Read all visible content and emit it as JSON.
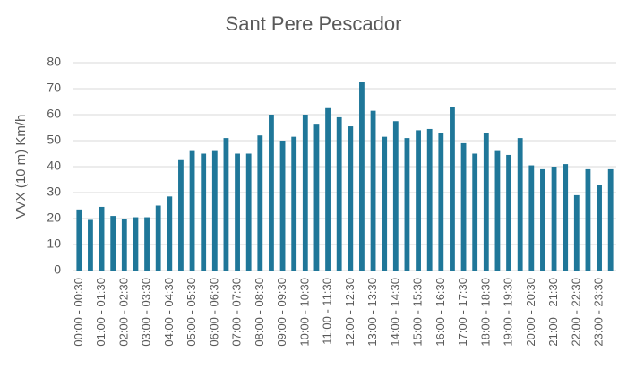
{
  "chart_data": {
    "type": "bar",
    "title": "Sant Pere Pescador",
    "y_label": "VVX (10 m)  Km/h",
    "categories": [
      "00:00 - 00:30",
      null,
      "01:00 - 01:30",
      null,
      "02:00 - 02:30",
      null,
      "03:00 - 03:30",
      null,
      "04:00 - 04:30",
      null,
      "05:00 - 05:30",
      null,
      "06:00 - 06:30",
      null,
      "07:00 - 07:30",
      null,
      "08:00 - 08:30",
      null,
      "09:00 - 09:30",
      null,
      "10:00 - 10:30",
      null,
      "11:00 - 11:30",
      null,
      "12:00 - 12:30",
      null,
      "13:00 - 13:30",
      null,
      "14:00 - 14:30",
      null,
      "15:00 - 15:30",
      null,
      "16:00 - 16:30",
      null,
      "17:00 - 17:30",
      null,
      "18:00 - 18:30",
      null,
      "19:00 - 19:30",
      null,
      "20:00 - 20:30",
      null,
      "21:00 - 21:30",
      null,
      "22:00 - 22:30",
      null,
      "23:00 - 23:30",
      null
    ],
    "values": [
      23.5,
      19.5,
      24.5,
      21,
      20,
      20.5,
      20.5,
      25,
      28.5,
      42.5,
      46,
      45,
      46,
      51,
      45,
      45,
      52,
      60,
      50,
      51.5,
      60,
      56.5,
      62.5,
      59,
      55.5,
      72.5,
      61.5,
      51.5,
      57.5,
      51,
      54,
      54.5,
      53,
      63,
      49,
      45,
      53,
      46,
      44.5,
      51,
      40.5,
      39,
      40,
      41,
      29,
      39,
      33,
      39
    ],
    "color": "#1f7799",
    "ylim": [
      0,
      80
    ],
    "yticks": [
      0,
      10,
      20,
      30,
      40,
      50,
      60,
      70,
      80
    ],
    "grid": true
  }
}
